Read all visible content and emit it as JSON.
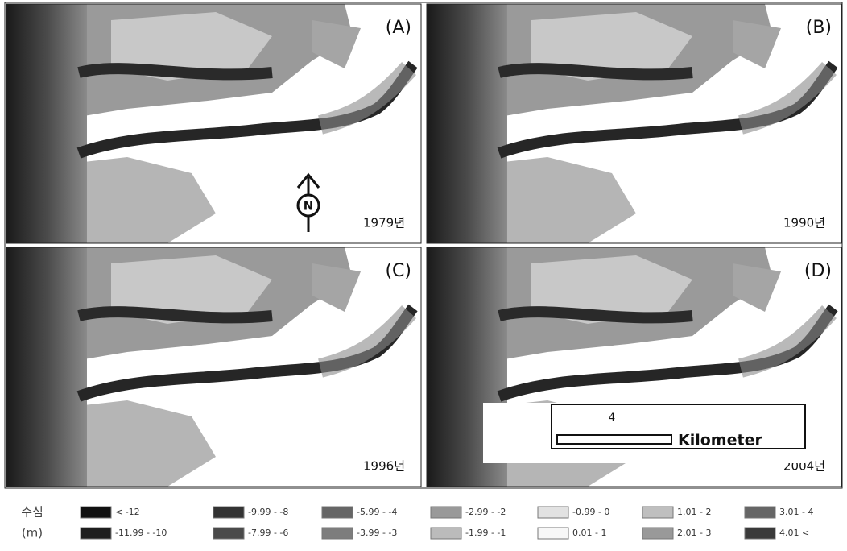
{
  "panels": [
    {
      "label": "(A)",
      "year": "1979년"
    },
    {
      "label": "(B)",
      "year": "1990년"
    },
    {
      "label": "(C)",
      "year": "1996년"
    },
    {
      "label": "(D)",
      "year": "2004년"
    }
  ],
  "north_arrow": "N",
  "scale_bar": {
    "value": "4",
    "unit": "Kilometer"
  },
  "legend": {
    "title": "수심",
    "unit": "(m)",
    "items": [
      {
        "label": "< -12",
        "color": "#111111"
      },
      {
        "label": "-11.99 - -10",
        "color": "#1e1e1e"
      },
      {
        "label": "-9.99 - -8",
        "color": "#333333"
      },
      {
        "label": "-7.99 - -6",
        "color": "#4a4a4a"
      },
      {
        "label": "-5.99 - -4",
        "color": "#666666"
      },
      {
        "label": "-3.99 - -3",
        "color": "#7d7d7d"
      },
      {
        "label": "-2.99 - -2",
        "color": "#999999"
      },
      {
        "label": "-1.99 - -1",
        "color": "#bbbbbb"
      },
      {
        "label": "-0.99 - 0",
        "color": "#e2e2e2"
      },
      {
        "label": "0.01 - 1",
        "color": "#f7f7f7"
      },
      {
        "label": "1.01 - 2",
        "color": "#bfbfbf"
      },
      {
        "label": "2.01 - 3",
        "color": "#999999"
      },
      {
        "label": "3.01 - 4",
        "color": "#666666"
      },
      {
        "label": "4.01 <",
        "color": "#3a3a3a"
      }
    ]
  }
}
